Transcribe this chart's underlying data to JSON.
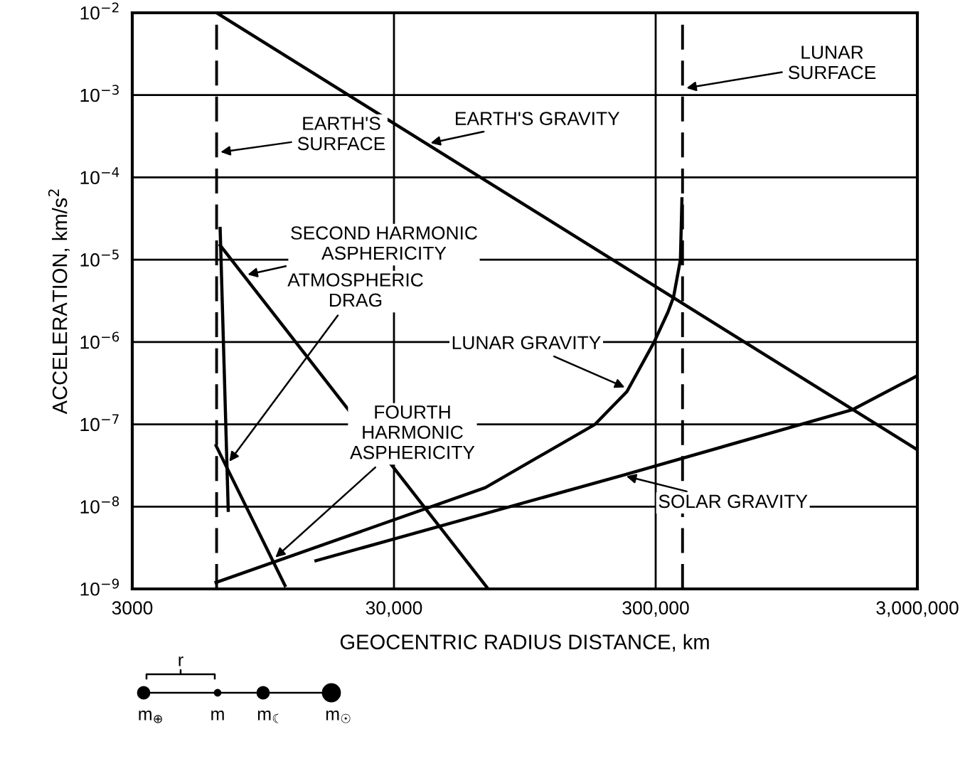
{
  "chart_data": {
    "type": "line",
    "xlabel": "GEOCENTRIC RADIUS DISTANCE, km",
    "ylabel": "ACCELERATION, km/s$^{2}$",
    "log": "xy",
    "xlim": [
      3000,
      3000000
    ],
    "ylim": [
      1e-09,
      0.01
    ],
    "xticks": [
      3000,
      {
        "value": 30000,
        "label": "30,000"
      },
      {
        "value": 300000,
        "label": "300,000"
      },
      {
        "value": 3000000,
        "label": "3,000,000"
      }
    ],
    "yticks": [
      {
        "value": 1e-09,
        "label": "10$^{−9}$"
      },
      {
        "value": 1e-08,
        "label": "10$^{−8}$"
      },
      {
        "value": 1e-07,
        "label": "10$^{−7}$"
      },
      {
        "value": 1e-06,
        "label": "10$^{−6}$"
      },
      {
        "value": 1e-05,
        "label": "10$^{−5}$"
      },
      {
        "value": 0.0001,
        "label": "10$^{−4}$"
      },
      {
        "value": 0.001,
        "label": "10$^{−3}$"
      },
      {
        "value": 0.01,
        "label": "10$^{−2}$"
      }
    ],
    "grid": true,
    "line_style": "solid",
    "series": [
      {
        "name": "EARTH'S GRAVITY",
        "color": "#000000",
        "x": [
          6300,
          3000000
        ],
        "values": [
          0.01,
          4.9e-08
        ]
      },
      {
        "name": "SECOND HARMONIC ASPHERICITY",
        "color": "#000000",
        "x": [
          6500,
          68700
        ],
        "values": [
          1.5e-05,
          1e-09
        ]
      },
      {
        "name": "ATMOSPHERIC DRAG",
        "color": "#000000",
        "x": [
          6500,
          6980
        ],
        "values": [
          2.4e-05,
          9e-09
        ]
      },
      {
        "name": "LUNAR GRAVITY",
        "color": "#000000",
        "x": [
          6270,
          67000,
          176000,
          233000,
          296000,
          334000,
          351000,
          373000,
          378000
        ],
        "values": [
          1.2e-09,
          1.7e-08,
          1e-07,
          2.5e-07,
          1e-06,
          2.3e-06,
          3.5e-06,
          1e-05,
          5.5e-05
        ]
      },
      {
        "name": "FOURTH HARMONIC ASPHERICITY",
        "color": "#000000",
        "x": [
          6270,
          11500
        ],
        "values": [
          5.5e-08,
          1.1e-09
        ]
      },
      {
        "name": "SOLAR GRAVITY",
        "color": "#000000",
        "x": [
          15100,
          224000,
          1690000,
          3000000
        ],
        "values": [
          2.2e-09,
          2.4e-08,
          1.5e-07,
          3.9e-07
        ]
      }
    ],
    "ref_lines": [
      {
        "axis": "x",
        "value": 6300,
        "label": "EARTH'S SURFACE",
        "line_style": "dashed",
        "color": "#000000"
      },
      {
        "axis": "x",
        "value": 380000,
        "label": "LUNAR SURFACE",
        "line_style": "dashed",
        "color": "#000000"
      }
    ],
    "annotations": [
      "r",
      "m$_{⊕}$",
      "m",
      "m$_{☾}$",
      "m$_{☉}$"
    ]
  }
}
